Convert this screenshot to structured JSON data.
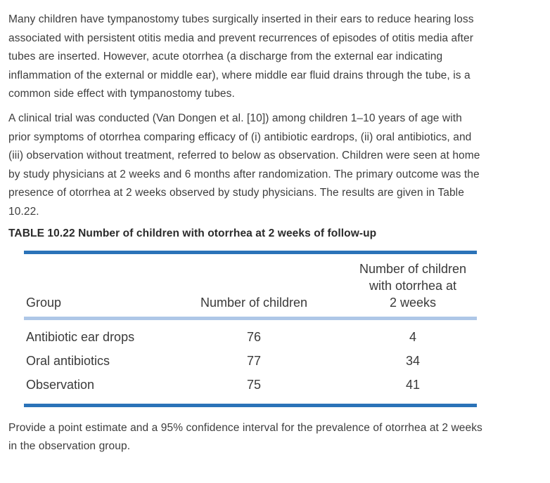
{
  "colors": {
    "accent_blue": "#2b73b8",
    "light_blue": "#aec7e7",
    "text": "#3d3d3d",
    "background": "#ffffff"
  },
  "paragraphs": {
    "intro": "Many children have tympanostomy tubes surgically inserted in their ears to reduce hearing loss\nassociated with persistent otitis media and prevent recurrences of episodes of otitis media after\ntubes are inserted. However, acute otorrhea (a discharge from the external ear indicating\ninflammation of the external or middle ear), where middle ear fluid drains through the tube, is a\ncommon side effect with tympanostomy tubes.",
    "study": "A clinical trial was conducted (Van Dongen et al. [10]) among children 1–10 years of age with\nprior symptoms of otorrhea comparing efficacy of (i) antibiotic eardrops, (ii) oral antibiotics, and\n(iii) observation without treatment, referred to below as observation. Children were seen at home\nby study physicians at 2 weeks and 6 months after randomization. The primary outcome was the\npresence of otorrhea at 2 weeks observed by study physicians. The results are given in Table\n10.22.",
    "question": "Provide a point estimate and a 95% confidence interval for the prevalence of otorrhea at 2 weeks\nin the observation group."
  },
  "table": {
    "caption": "TABLE 10.22 Number of children with otorrhea at 2 weeks of follow-up",
    "columns": {
      "group": "Group",
      "children": "Number of children",
      "otorrhea_lines": [
        "Number of children",
        "with otorrhea at",
        "2 weeks"
      ]
    },
    "rows": [
      {
        "group": "Antibiotic ear drops",
        "children": "76",
        "otorrhea": "4"
      },
      {
        "group": "Oral antibiotics",
        "children": "77",
        "otorrhea": "34"
      },
      {
        "group": "Observation",
        "children": "75",
        "otorrhea": "41"
      }
    ]
  }
}
